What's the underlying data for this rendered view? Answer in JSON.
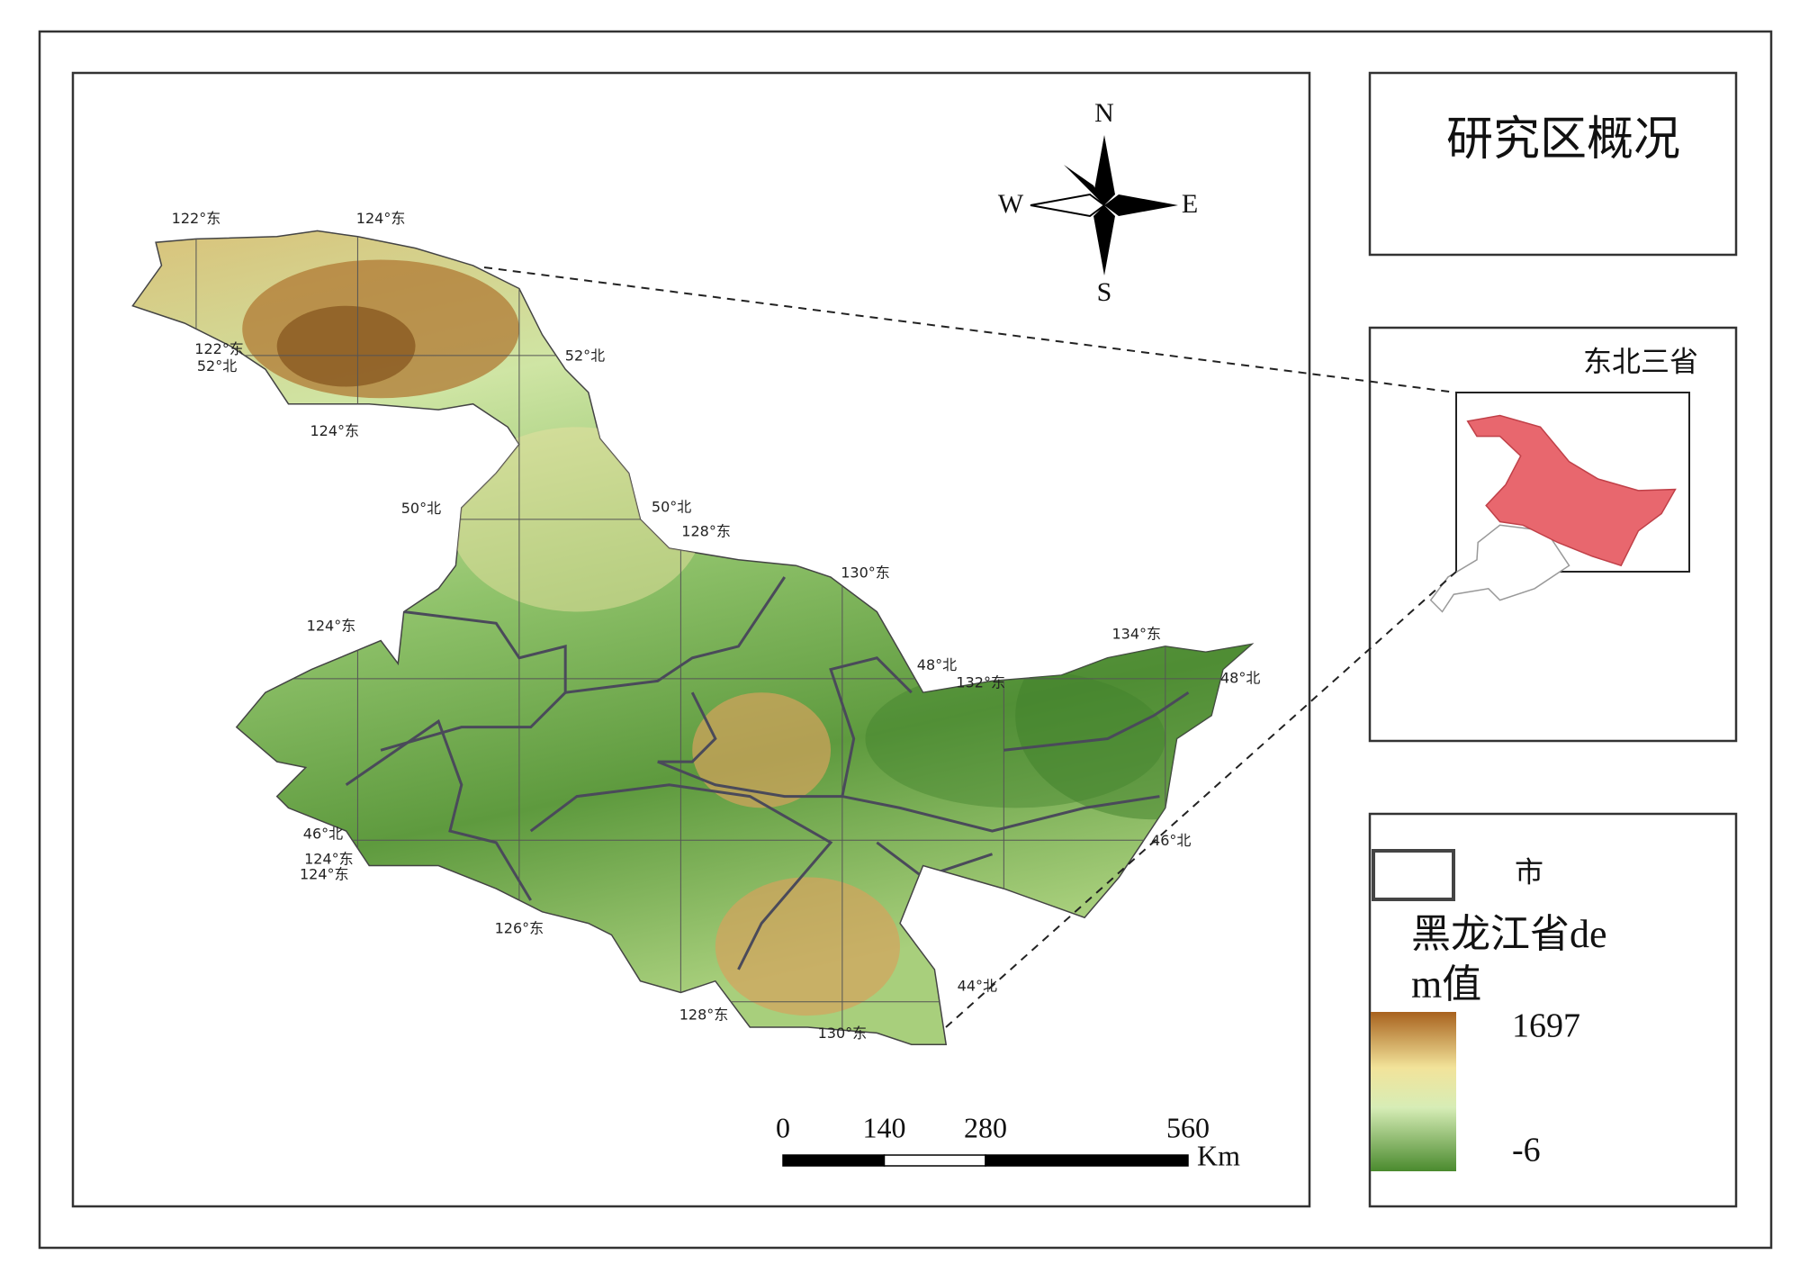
{
  "title": "研究区概况",
  "inset": {
    "label": "东北三省"
  },
  "compass": {
    "north": "N",
    "south": "S",
    "west": "W",
    "east": "E"
  },
  "legend": {
    "city_label": "市",
    "dem_label": "黑龙江省dem值",
    "max": 1697,
    "min": -6
  },
  "scale_bar": {
    "ticks": [
      0,
      140,
      280,
      560
    ],
    "unit": "Km"
  },
  "graticule_labels": [
    "122°东",
    "124°东",
    "122°东",
    "52°北",
    "124°东",
    "52°北",
    "50°北",
    "50°北",
    "128°东",
    "130°东",
    "124°东",
    "134°东",
    "48°北",
    "132°东",
    "48°北",
    "46°北",
    "124°东",
    "124°东",
    "46°北",
    "126°东",
    "44°北",
    "128°东",
    "130°东"
  ]
}
